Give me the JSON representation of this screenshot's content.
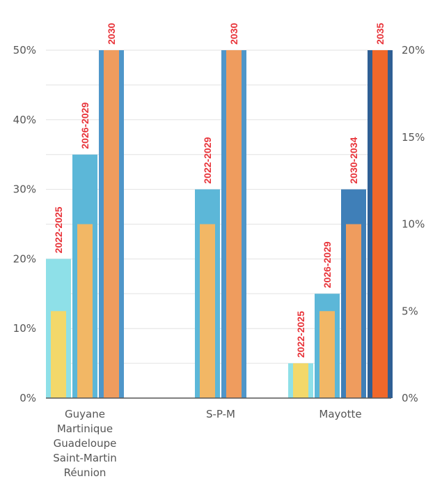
{
  "chart_data": {
    "type": "bar",
    "title": "",
    "xlabel": "",
    "ylabel": "",
    "y_left": {
      "ylim": [
        0,
        50
      ],
      "ticks": [
        "0%",
        "10%",
        "20%",
        "30%",
        "40%",
        "50%"
      ]
    },
    "y_right": {
      "ylim": [
        0,
        20
      ],
      "ticks": [
        "0%",
        "5%",
        "10%",
        "15%",
        "20%"
      ]
    },
    "grid": true,
    "categories": [
      {
        "lines": [
          "Guyane",
          "Martinique",
          "Guadeloupe",
          "Saint-Martin",
          "Réunion"
        ],
        "bars": [
          {
            "period": "2022-2025",
            "value": 20,
            "inner_value": 12.5,
            "outer_color": "#8ee0e8",
            "inner_color": "#f3d86a"
          },
          {
            "period": "2026-2029",
            "value": 35,
            "inner_value": 25,
            "outer_color": "#5cb7d8",
            "inner_color": "#f2b765"
          },
          {
            "period": "2030",
            "value": 50,
            "inner_value": 50,
            "outer_color": "#4f96c9",
            "inner_color": "#ef9c5e"
          }
        ]
      },
      {
        "lines": [
          "S-P-M"
        ],
        "bars": [
          {
            "period": "2022-2029",
            "value": 30,
            "inner_value": 25,
            "outer_color": "#5cb7d8",
            "inner_color": "#f2b765"
          },
          {
            "period": "2030",
            "value": 50,
            "inner_value": 50,
            "outer_color": "#4f96c9",
            "inner_color": "#ef9c5e"
          }
        ]
      },
      {
        "lines": [
          "Mayotte"
        ],
        "bars": [
          {
            "period": "2022-2025",
            "value": 5,
            "inner_value": 5,
            "outer_color": "#8ee0e8",
            "inner_color": "#f3d86a"
          },
          {
            "period": "2026-2029",
            "value": 15,
            "inner_value": 12.5,
            "outer_color": "#5cb7d8",
            "inner_color": "#f2b765"
          },
          {
            "period": "2030-2034",
            "value": 30,
            "inner_value": 25,
            "outer_color": "#3f7fb8",
            "inner_color": "#ef9c5e"
          },
          {
            "period": "2035",
            "value": 50,
            "inner_value": 50,
            "outer_color": "#2f5f94",
            "inner_color": "#f0682a"
          }
        ]
      }
    ]
  }
}
